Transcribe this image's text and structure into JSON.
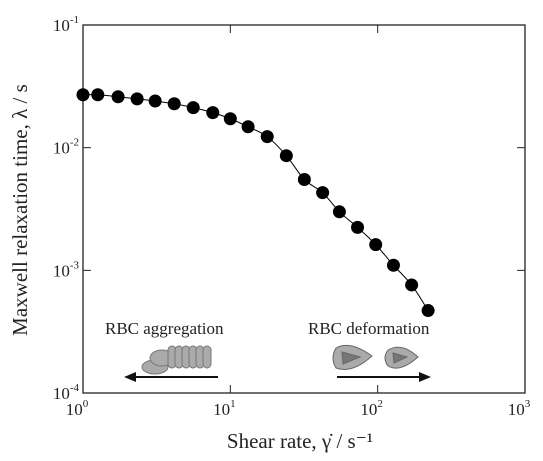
{
  "chart_data": {
    "type": "line",
    "x_label": "Shear rate, γ̇ / s⁻¹",
    "y_label": "Maxwell relaxation time, λ / s",
    "x": [
      1,
      1.26,
      1.73,
      2.33,
      3.09,
      4.16,
      5.6,
      7.6,
      10,
      13.2,
      17.8,
      24,
      31.8,
      42.3,
      55,
      73,
      97,
      128,
      170,
      220
    ],
    "series": [
      {
        "color": "#000000",
        "values": [
          0.027,
          0.027,
          0.026,
          0.025,
          0.024,
          0.0228,
          0.0212,
          0.0193,
          0.0172,
          0.0148,
          0.0123,
          0.0086,
          0.0055,
          0.0043,
          0.003,
          0.00224,
          0.00162,
          0.0011,
          0.00076,
          0.00047
        ]
      }
    ],
    "xlim": [
      1,
      1000
    ],
    "ylim": [
      0.0001,
      0.1
    ],
    "log_x": true,
    "log_y": true,
    "xticks": [
      {
        "value": 1,
        "label": "10",
        "sup": "0"
      },
      {
        "value": 10,
        "label": "10",
        "sup": "1"
      },
      {
        "value": 100,
        "label": "10",
        "sup": "2"
      },
      {
        "value": 1000,
        "label": "10",
        "sup": "3"
      }
    ],
    "yticks": [
      {
        "value": 0.0001,
        "label": "10",
        "sup": "-4"
      },
      {
        "value": 0.001,
        "label": "10",
        "sup": "-3"
      },
      {
        "value": 0.01,
        "label": "10",
        "sup": "-2"
      },
      {
        "value": 0.1,
        "label": "10",
        "sup": "-1"
      }
    ],
    "annotations": [
      "RBC aggregation",
      "RBC deformation"
    ]
  }
}
